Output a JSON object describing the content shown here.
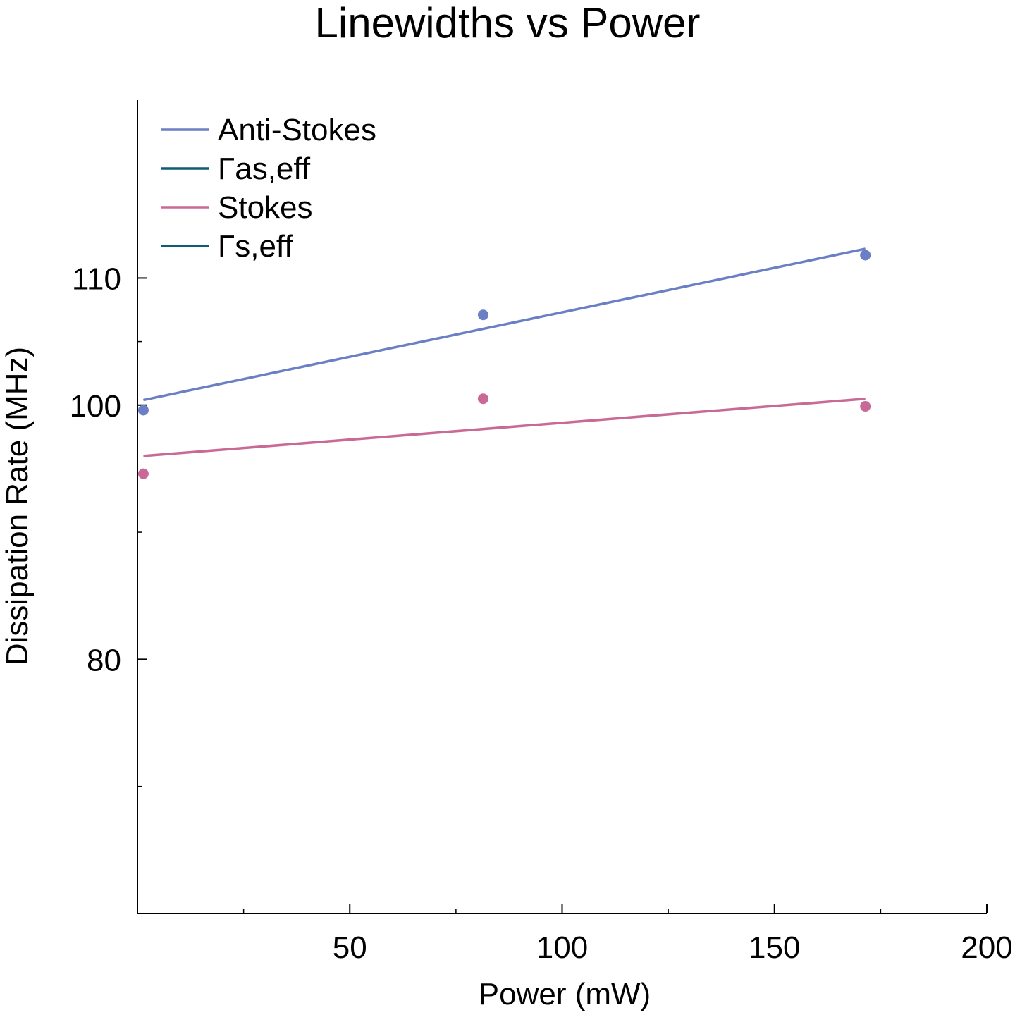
{
  "chart_data": {
    "type": "scatter",
    "title": "Linewidths vs Power",
    "xlabel": "Power (mW)",
    "ylabel": "Dissipation Rate (MHz)",
    "xlim": [
      0,
      200
    ],
    "ylim": [
      60,
      124
    ],
    "xticks": [
      50,
      100,
      150,
      200
    ],
    "xtick_labels": [
      "50",
      "100",
      "150",
      "200"
    ],
    "xminor": [
      25,
      75,
      125,
      175
    ],
    "yticks": [
      80,
      100,
      110
    ],
    "ytick_labels": [
      "80",
      "100",
      "110"
    ],
    "yminor": [
      70,
      90,
      105
    ],
    "grid": false,
    "legend_position": "top-left",
    "series": [
      {
        "name": "Anti-Stokes",
        "kind": "scatter",
        "color": "#6b7fc4",
        "x": [
          1.4,
          81.4,
          171.4
        ],
        "y": [
          99.6,
          107.1,
          111.8
        ]
      },
      {
        "name": "Γas,eff",
        "kind": "line",
        "color": "#6b7fc4",
        "legend_color": "#0f5c73",
        "x": [
          1.4,
          171.4
        ],
        "y": [
          100.4,
          112.3
        ]
      },
      {
        "name": "Stokes",
        "kind": "scatter",
        "color": "#c96a96",
        "x": [
          1.4,
          81.4,
          171.4
        ],
        "y": [
          94.6,
          100.5,
          99.9
        ]
      },
      {
        "name": "Γs,eff",
        "kind": "line",
        "color": "#c96a96",
        "legend_color": "#0f5c73",
        "x": [
          1.4,
          171.4
        ],
        "y": [
          96.0,
          100.5
        ]
      }
    ],
    "legend": [
      {
        "label": "Anti-Stokes",
        "color": "#6b7fc4"
      },
      {
        "label": "Γas,eff",
        "color": "#0f5c73"
      },
      {
        "label": "Stokes",
        "color": "#c96a96"
      },
      {
        "label": "Γs,eff",
        "color": "#0f5c73"
      }
    ]
  }
}
